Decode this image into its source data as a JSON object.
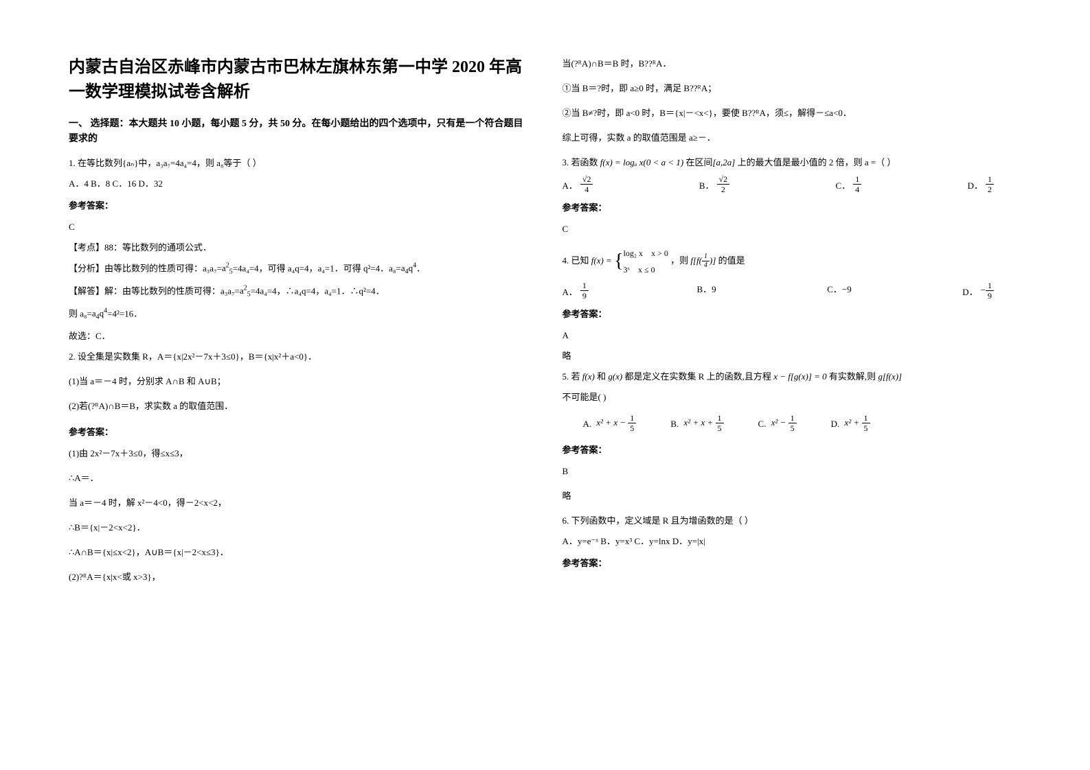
{
  "title": "内蒙古自治区赤峰市内蒙古市巴林左旗林东第一中学 2020 年高一数学理模拟试卷含解析",
  "section1": "一、 选择题：本大题共 10 小题，每小题 5 分，共 50 分。在每小题给出的四个选项中，只有是一个符合题目要求的",
  "q1": {
    "text": "1. 在等比数列{aₙ}中，a₃a₇=4a₄=4，则 a₈等于（    ）",
    "options": "A．4    B．8    C．16    D．32",
    "answer_label": "参考答案：",
    "answer": "C",
    "exp1": "【考点】88：等比数列的通项公式．",
    "exp2_pre": "【分析】由等比数列的性质可得：a₃a₇=",
    "exp2_mid": "=4a₄=4，可得 a₄q=4，a₄=1．可得 q²=4．a₈=",
    "exp2_end": "．",
    "exp3_pre": "【解答】解：由等比数列的性质可得：a₃a₇=",
    "exp3_end": "=4a₄=4，∴a₄q=4，a₄=1．∴q²=4．",
    "exp4_pre": "则 a₈=",
    "exp4_end": "=4²=16．",
    "exp5": "故选：C．"
  },
  "q2": {
    "text": "2. 设全集是实数集 R，A＝{x|2x²－7x＋3≤0}，B＝{x|x²＋a<0}．",
    "p1": "(1)当 a＝－4 时，分别求 A∩B 和 A∪B；",
    "p2": "(2)若(?ᴿA)∩B＝B，求实数 a 的取值范围．",
    "answer_label": "参考答案：",
    "a1": "(1)由 2x²－7x＋3≤0，得≤x≤3，",
    "a2": "∴A＝．",
    "a3": "当 a＝－4 时，解 x²－4<0，得－2<x<2，",
    "a4": "∴B＝{x|－2<x<2}．",
    "a5": "∴A∩B＝{x|≤x<2}，A∪B＝{x|－2<x≤3}．",
    "a6": "(2)?ᴿA＝{x|x<或 x>3}，",
    "r1": "当(?ᴿA)∩B＝B 时，B??ᴿA．",
    "r2": "①当 B＝?时，即 a≥0 时，满足 B??ᴿA；",
    "r3": "②当 B≠?时，即 a<0 时，B＝{x|－<x<}，要使 B??ᴿA，须≤，解得－≤a<0．",
    "r4": "综上可得，实数 a 的取值范围是 a≥－．"
  },
  "q3": {
    "text_pre": "3. 若函数 ",
    "fx": "f(x) = logₐ x(0 < a < 1)",
    "text_mid": " 在区间",
    "interval": "[a,2a]",
    "text_end": " 上的最大值是最小值的 2 倍，则 a =（        ）",
    "optA": "A．",
    "optB": "B．",
    "optC": "C．",
    "optD": "D．",
    "answer_label": "参考答案：",
    "answer": "C"
  },
  "q4": {
    "text_pre": "4. 已知 ",
    "text_mid": "，则",
    "ff": "f[f(¼)]",
    "text_end": " 的值是",
    "optA": "A．",
    "optB": "B．9",
    "optC": "C．−9",
    "optD": "D．",
    "answer_label": "参考答案：",
    "answer": "A",
    "brief": "略"
  },
  "q5": {
    "text_pre": "5. 若 ",
    "fx": "f(x)",
    "and": " 和 ",
    "gx": "g(x)",
    "text_mid": " 都是定义在实数集 R 上的函数,且方程 ",
    "eq": "x − f[g(x)] = 0",
    "text_mid2": " 有实数解,则 ",
    "gfx": "g[f(x)]",
    "text_end": "不可能是(            )",
    "optA": "A.",
    "optB": "B.",
    "optC": "C.",
    "optD": "D.",
    "answer_label": "参考答案：",
    "answer": "B",
    "brief": "略"
  },
  "q6": {
    "text": "6. 下列函数中，定义域是 R 且为增函数的是（    ）",
    "options": "A．y=e⁻ˣ       B．y=x³ C．y=lnx       D．y=|x|",
    "answer_label": "参考答案："
  }
}
